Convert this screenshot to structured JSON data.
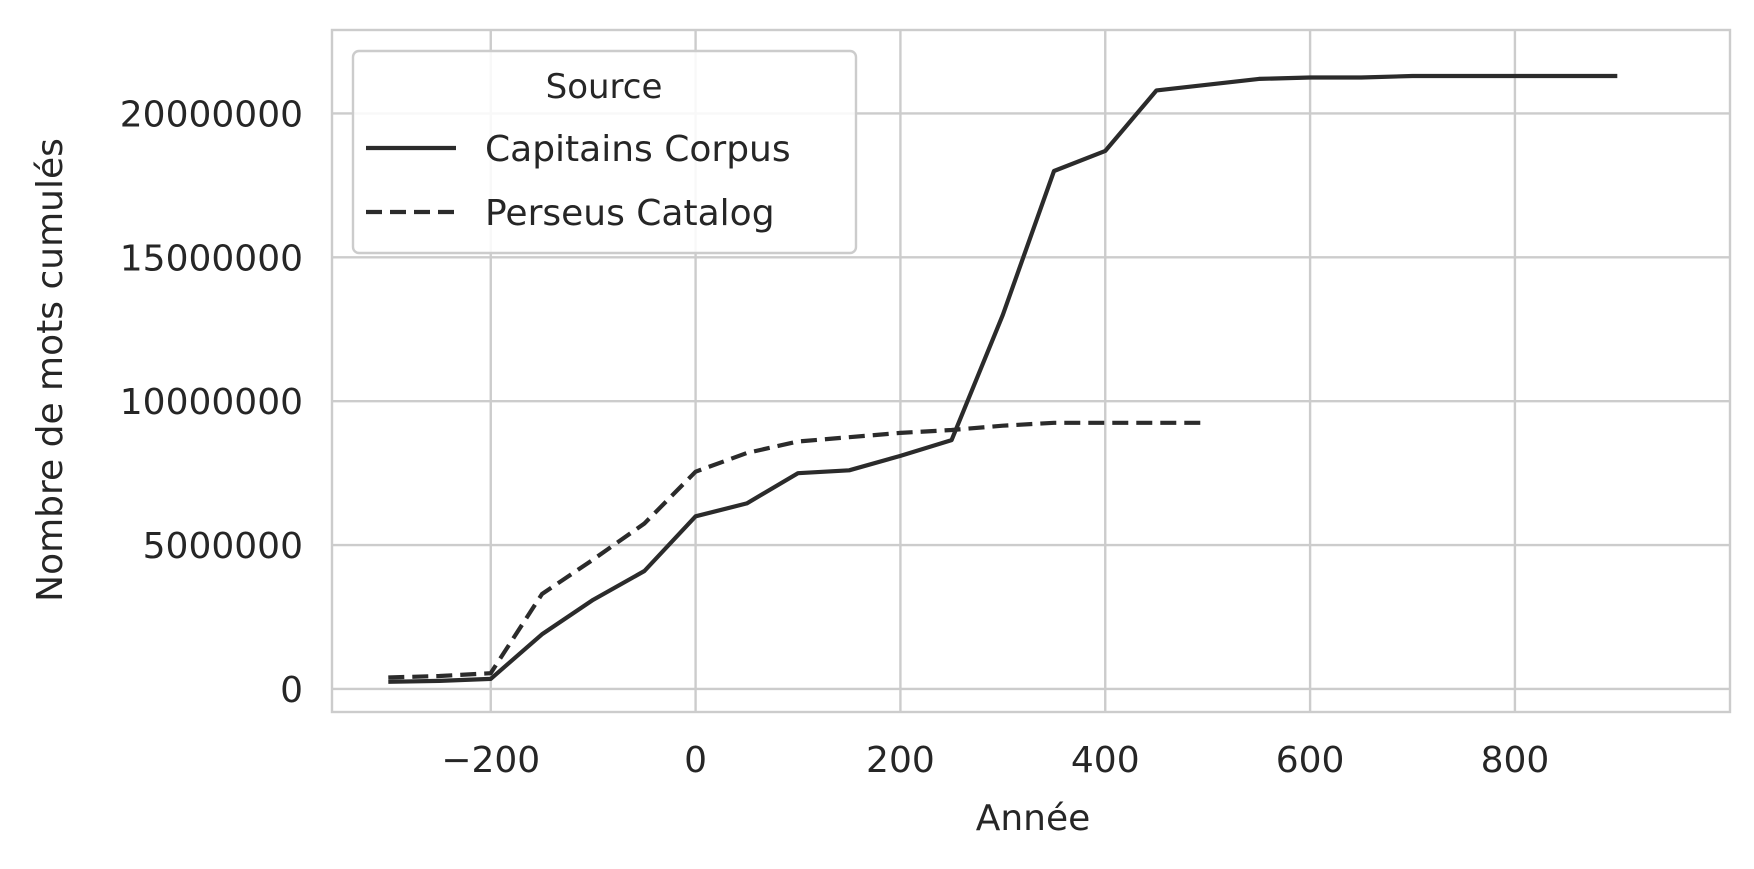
{
  "chart_data": {
    "type": "line",
    "title": "",
    "xlabel": "Année",
    "ylabel": "Nombre de mots cumulés",
    "xlim": [
      -355,
      1010
    ],
    "ylim": [
      -800000,
      22900000
    ],
    "x_ticks": [
      -200,
      0,
      200,
      400,
      600,
      800
    ],
    "x_tick_labels": [
      "−200",
      "0",
      "200",
      "400",
      "600",
      "800"
    ],
    "y_ticks": [
      0,
      5000000,
      10000000,
      15000000,
      20000000
    ],
    "y_tick_labels": [
      "0",
      "5000000",
      "10000000",
      "15000000",
      "20000000"
    ],
    "grid": true,
    "legend": {
      "title": "Source",
      "placement": "top-left"
    },
    "series": [
      {
        "name": "Capitains Corpus",
        "style": "solid",
        "color": "#2b2b2b",
        "points": [
          [
            -300,
            250000
          ],
          [
            -250,
            280000
          ],
          [
            -200,
            350000
          ],
          [
            -150,
            1900000
          ],
          [
            -100,
            3100000
          ],
          [
            -50,
            4100000
          ],
          [
            0,
            6000000
          ],
          [
            50,
            6450000
          ],
          [
            100,
            7500000
          ],
          [
            150,
            7600000
          ],
          [
            200,
            8100000
          ],
          [
            250,
            8650000
          ],
          [
            300,
            13000000
          ],
          [
            350,
            18000000
          ],
          [
            400,
            18700000
          ],
          [
            450,
            20800000
          ],
          [
            500,
            21000000
          ],
          [
            550,
            21200000
          ],
          [
            600,
            21250000
          ],
          [
            650,
            21250000
          ],
          [
            700,
            21300000
          ],
          [
            750,
            21300000
          ],
          [
            800,
            21300000
          ],
          [
            850,
            21300000
          ],
          [
            900,
            21300000
          ]
        ]
      },
      {
        "name": "Perseus Catalog",
        "style": "dashed",
        "color": "#2b2b2b",
        "points": [
          [
            -300,
            400000
          ],
          [
            -250,
            450000
          ],
          [
            -200,
            550000
          ],
          [
            -150,
            3300000
          ],
          [
            -100,
            4500000
          ],
          [
            -50,
            5750000
          ],
          [
            0,
            7550000
          ],
          [
            50,
            8200000
          ],
          [
            100,
            8600000
          ],
          [
            150,
            8750000
          ],
          [
            200,
            8900000
          ],
          [
            250,
            9000000
          ],
          [
            300,
            9150000
          ],
          [
            350,
            9250000
          ],
          [
            400,
            9250000
          ],
          [
            450,
            9250000
          ],
          [
            500,
            9250000
          ]
        ]
      }
    ]
  }
}
